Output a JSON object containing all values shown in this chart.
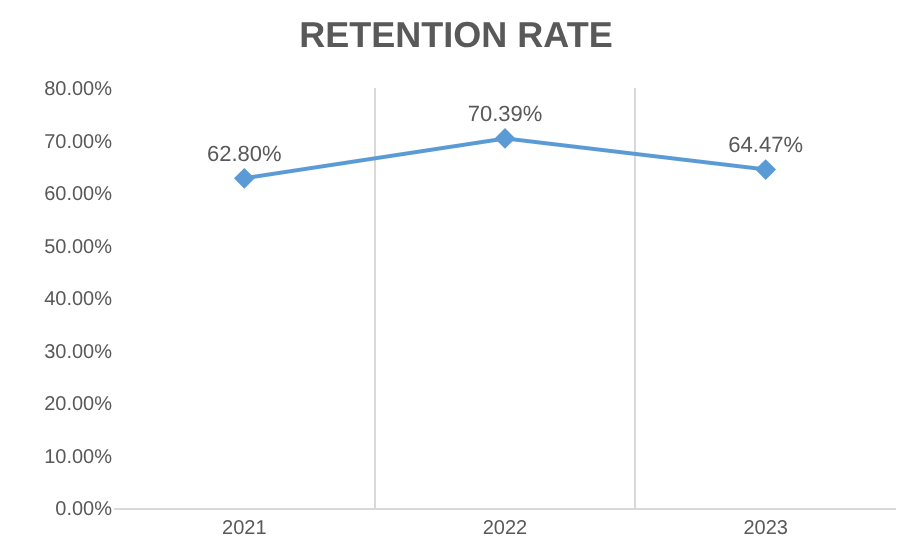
{
  "chart_data": {
    "type": "line",
    "title": "RETENTION RATE",
    "categories": [
      "2021",
      "2022",
      "2023"
    ],
    "series": [
      {
        "color": "#5b9bd5",
        "values": [
          62.8,
          70.39,
          64.47
        ],
        "value_labels": [
          "62.80%",
          "70.39%",
          "64.47%"
        ]
      }
    ],
    "ylim": [
      0,
      80
    ],
    "yticks": [
      {
        "value": 0,
        "label": "0.00%"
      },
      {
        "value": 10,
        "label": "10.00%"
      },
      {
        "value": 20,
        "label": "20.00%"
      },
      {
        "value": 30,
        "label": "30.00%"
      },
      {
        "value": 40,
        "label": "40.00%"
      },
      {
        "value": 50,
        "label": "50.00%"
      },
      {
        "value": 60,
        "label": "60.00%"
      },
      {
        "value": 70,
        "label": "70.00%"
      },
      {
        "value": 80,
        "label": "80.00%"
      }
    ],
    "grid": "x",
    "marker": "diamond",
    "line_style": "solid"
  }
}
